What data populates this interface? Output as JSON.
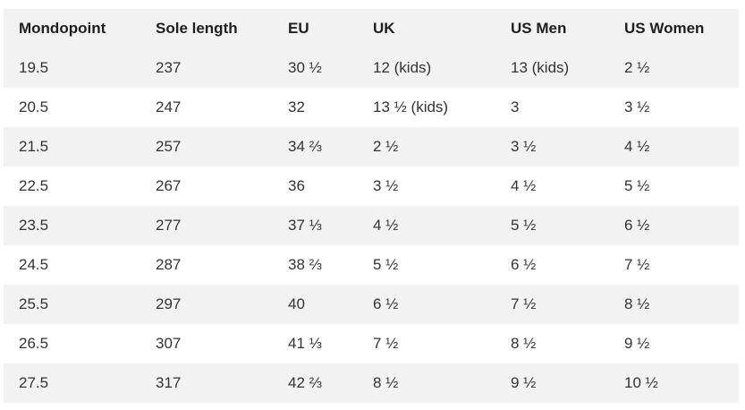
{
  "table": {
    "headers": [
      "Mondopoint",
      "Sole length",
      "EU",
      "UK",
      "US Men",
      "US Women"
    ],
    "rows": [
      [
        "19.5",
        "237",
        "30 ½",
        "12 (kids)",
        "13 (kids)",
        "2 ½"
      ],
      [
        "20.5",
        "247",
        "32",
        "13 ½ (kids)",
        "3",
        "3 ½"
      ],
      [
        "21.5",
        "257",
        "34 ⅔",
        "2 ½",
        "3 ½",
        "4 ½"
      ],
      [
        "22.5",
        "267",
        "36",
        "3 ½",
        "4 ½",
        "5 ½"
      ],
      [
        "23.5",
        "277",
        "37 ⅓",
        "4 ½",
        "5 ½",
        "6 ½"
      ],
      [
        "24.5",
        "287",
        "38 ⅔",
        "5 ½",
        "6 ½",
        "7 ½"
      ],
      [
        "25.5",
        "297",
        "40",
        "6 ½",
        "7 ½",
        "8 ½"
      ],
      [
        "26.5",
        "307",
        "41 ⅓",
        "7 ½",
        "8 ½",
        "9 ½"
      ],
      [
        "27.5",
        "317",
        "42 ⅔",
        "8 ½",
        "9 ½",
        "10 ½"
      ]
    ]
  },
  "colors": {
    "stripe": "#f2f2f2",
    "header_bg": "#f2f2f2",
    "text": "#333333"
  }
}
